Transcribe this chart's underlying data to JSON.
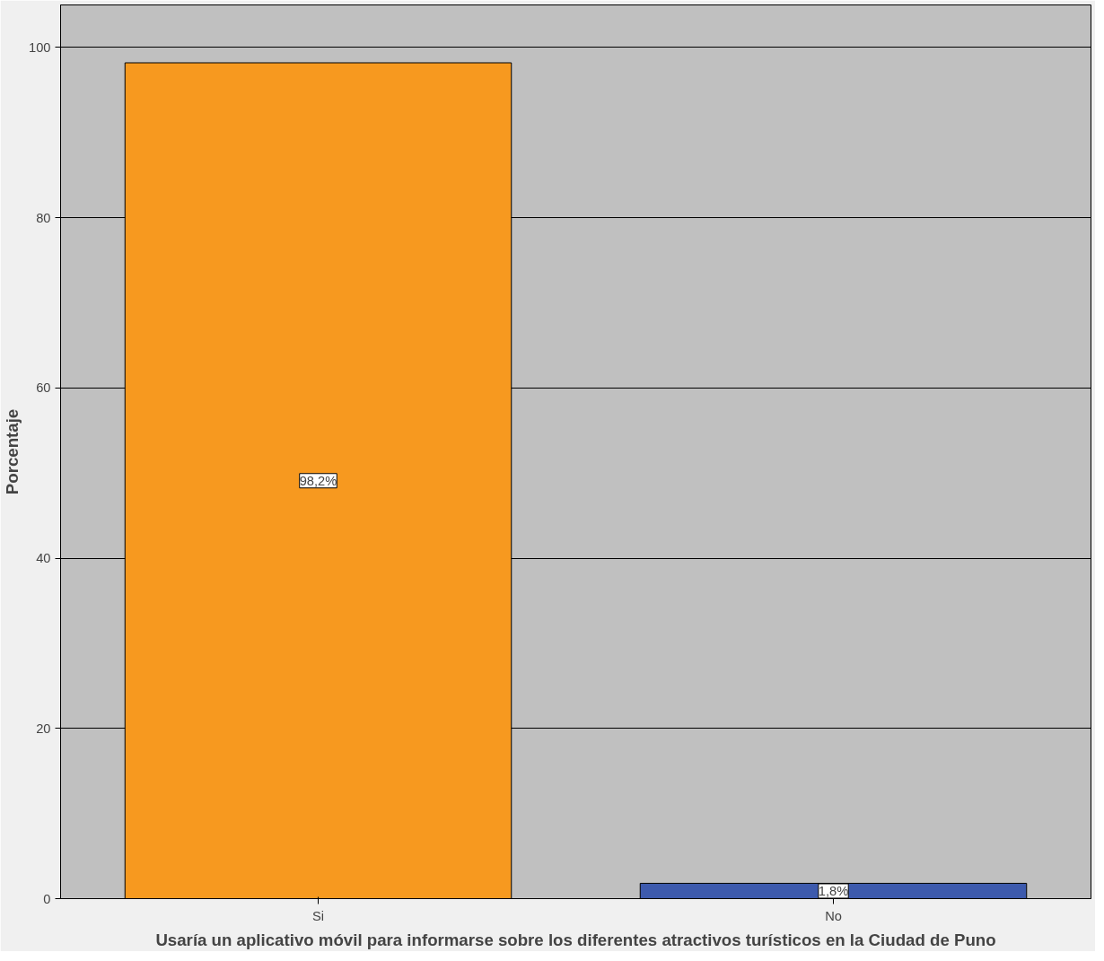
{
  "chart_data": {
    "type": "bar",
    "xlabel": "Usaría un aplicativo móvil para informarse sobre los diferentes atractivos turísticos en la Ciudad de Puno",
    "ylabel": "Porcentaje",
    "categories": [
      "Si",
      "No"
    ],
    "values": [
      98.2,
      1.8
    ],
    "colors": [
      "#f7991f",
      "#3d5aad"
    ],
    "value_labels": [
      "98,2%",
      "1,8%"
    ],
    "ylim": [
      0,
      105
    ],
    "yticks": [
      0,
      20,
      40,
      60,
      80,
      100
    ],
    "grid": "y"
  }
}
